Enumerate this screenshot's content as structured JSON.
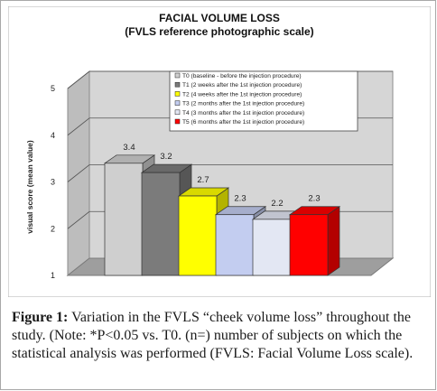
{
  "chart_data": {
    "type": "bar",
    "title": "FACIAL VOLUME LOSS",
    "subtitle": "(FVLS reference photographic scale)",
    "xlabel": "",
    "ylabel": "visual score (mean value)",
    "ylim": [
      1,
      5
    ],
    "yticks": [
      "1",
      "2",
      "3",
      "4",
      "5"
    ],
    "grid": true,
    "legend_position": "top-right",
    "categories": [
      "T0",
      "T1",
      "T2",
      "T3",
      "T4",
      "T5"
    ],
    "values": [
      3.4,
      3.2,
      2.7,
      2.3,
      2.2,
      2.3
    ],
    "data_labels": [
      "3.4",
      "3.2",
      "2.7",
      "2.3",
      "2.2",
      "2.3"
    ],
    "legend": [
      "T0 (baseline - before the injection procedure)",
      "T1 (2 weeks after the 1st injection procedure)",
      "T2 (4 weeks after the 1st injection procedure)",
      "T3 (2 months after the 1st injection procedure)",
      "T4 (3 months after the 1st injection procedure)",
      "T5 (6 months after the 1st injection procedure)"
    ],
    "colors": [
      "#cfcfcf",
      "#7b7b7b",
      "#ffff00",
      "#c3cdf0",
      "#e3e7f3",
      "#ff0000"
    ]
  },
  "caption": {
    "label": "Figure 1:",
    "text": " Variation in the FVLS “cheek volume loss” throughout the study. (Note: *P<0.05 vs. T0. (n=) number of subjects on which the statistical analysis was performed (FVLS: Facial Volume Loss scale)."
  }
}
